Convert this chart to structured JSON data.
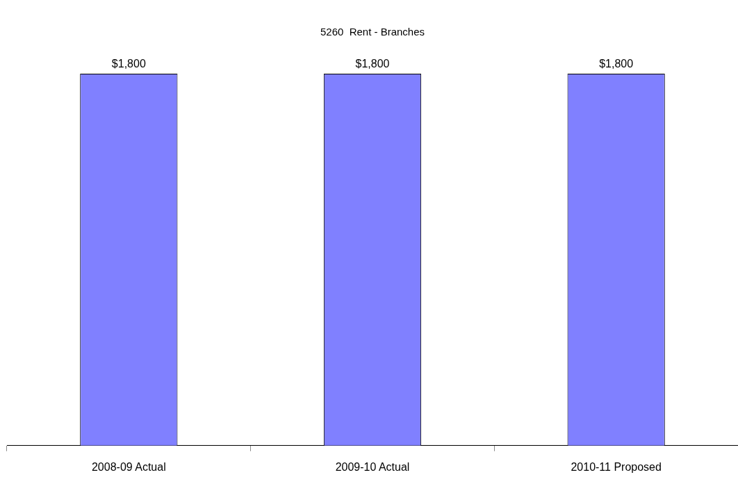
{
  "chart_data": {
    "type": "bar",
    "title": "5260  Rent - Branches",
    "categories": [
      "2008-09 Actual",
      "2009-10 Actual",
      "2010-11 Proposed"
    ],
    "values": [
      1800,
      1800,
      1800
    ],
    "value_labels": [
      "$1,800",
      "$1,800",
      "$1,800"
    ],
    "color": "#8080ff",
    "legend": false,
    "tick_labels": "x"
  }
}
